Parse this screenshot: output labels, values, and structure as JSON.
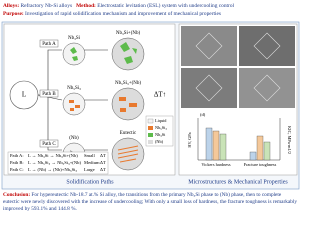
{
  "header": {
    "alloys_label": "Alloys:",
    "alloys": "Refractory Nb-Si alloys",
    "method_label": "Method:",
    "method": "Electrostatic levitation (ESL) system with undercooling control",
    "purpose_label": "Purpose:",
    "purpose": "Investigation of rapid solidification mechanism and improvement of mechanical properties"
  },
  "diagram": {
    "liquid": "L",
    "paths": [
      {
        "label": "Path A",
        "primary": "Nb₃Si",
        "final": "Nb₃Si+(Nb)"
      },
      {
        "label": "Path B",
        "primary": "Nb₅Si₃",
        "final": "Nb₅Si₃+(Nb)"
      },
      {
        "label": "Path C",
        "primary": "(Nb)",
        "final": "Eutectic"
      }
    ],
    "legend": [
      "Liquid",
      "Nb₅Si₃",
      "Nb₃Si",
      "(Nb)"
    ],
    "delta": "ΔT↑",
    "table": [
      [
        "Path A:",
        "L → Nb₃Si → Nb₃Si+(Nb)",
        "Small",
        "ΔT"
      ],
      [
        "Path B:",
        "L → Nb₅Si₃ → Nb₅Si₃+(Nb)",
        "Medium",
        "ΔT"
      ],
      [
        "Path C:",
        "L → (Nb) → (Nb)+Nb₅Si₃",
        "Large",
        "ΔT"
      ]
    ],
    "caption": "Solidification Paths"
  },
  "right": {
    "caption": "Microstructures & Mechanical Properties",
    "chart_tag": "(d)",
    "y_label": "HV, GPa",
    "y2_label": "KIC, MPa·m1/2",
    "categories": [
      "Vickers hardness",
      "Fracture toughness"
    ]
  },
  "conclusion": {
    "label": "Conclusion:",
    "text": "For hypereutectic Nb-18.7 at.% Si alloy, the transitions from the primary Nb₃Si phase to (Nb) phase, then to complete eutectic were newly discovered with the increase of undercooling; With only a small loss of hardness, the fracture toughness is remarkably improved by 593.1% and 144.8 %."
  }
}
